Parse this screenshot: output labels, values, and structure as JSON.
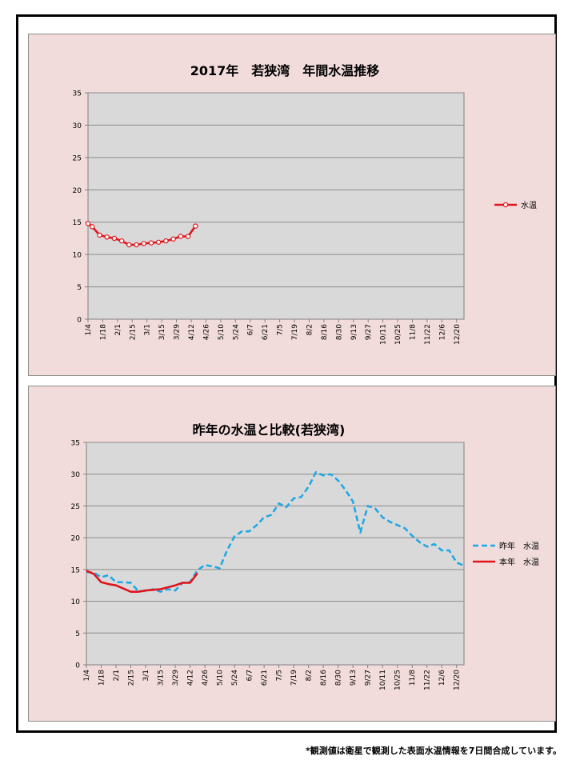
{
  "footnote": "*観測値は衛星で観測した表面水温情報を7日間合成しています。",
  "chart_data": [
    {
      "type": "line",
      "title": "2017年　若狭湾　年間水温推移",
      "categories": [
        "1/4",
        "1/18",
        "2/1",
        "2/15",
        "3/1",
        "3/15",
        "3/29",
        "4/12",
        "4/26",
        "5/10",
        "5/24",
        "6/7",
        "6/21",
        "7/5",
        "7/19",
        "8/2",
        "8/16",
        "8/30",
        "9/13",
        "9/27",
        "10/11",
        "10/25",
        "11/8",
        "11/22",
        "12/6",
        "12/20"
      ],
      "x_span": [
        "1/4",
        "12/27"
      ],
      "ylim": [
        0,
        35
      ],
      "yticks": [
        0,
        5,
        10,
        15,
        20,
        25,
        30,
        35
      ],
      "grid": true,
      "legend_position": "right",
      "colors": {
        "plot_bg": "#d9d9d9",
        "panel_bg": "#f2dcdb",
        "line": "#e0141b"
      },
      "series": [
        {
          "name": "水温",
          "color": "#e0141b",
          "style": "solid-markers",
          "points": [
            [
              "1/4",
              14.8
            ],
            [
              "1/8",
              14.3
            ],
            [
              "1/15",
              13.0
            ],
            [
              "1/22",
              12.7
            ],
            [
              "1/29",
              12.5
            ],
            [
              "2/5",
              12.1
            ],
            [
              "2/12",
              11.5
            ],
            [
              "2/19",
              11.5
            ],
            [
              "2/26",
              11.7
            ],
            [
              "3/5",
              11.8
            ],
            [
              "3/12",
              11.9
            ],
            [
              "3/19",
              12.1
            ],
            [
              "3/26",
              12.4
            ],
            [
              "4/2",
              12.8
            ],
            [
              "4/9",
              12.8
            ],
            [
              "4/16",
              14.4
            ]
          ]
        }
      ]
    },
    {
      "type": "line",
      "title": "昨年の水温と比較(若狭湾)",
      "categories": [
        "1/4",
        "1/18",
        "2/1",
        "2/15",
        "3/1",
        "3/15",
        "3/29",
        "4/12",
        "4/26",
        "5/10",
        "5/24",
        "6/7",
        "6/21",
        "7/5",
        "7/19",
        "8/2",
        "8/16",
        "8/30",
        "9/13",
        "9/27",
        "10/11",
        "10/25",
        "11/8",
        "11/22",
        "12/6",
        "12/20"
      ],
      "x_span": [
        "1/4",
        "12/27"
      ],
      "ylim": [
        0,
        35
      ],
      "yticks": [
        0,
        5,
        10,
        15,
        20,
        25,
        30,
        35
      ],
      "grid": true,
      "legend_position": "right",
      "colors": {
        "plot_bg": "#d9d9d9",
        "panel_bg": "#f2dcdb",
        "last_year": "#1aa7e6",
        "this_year": "#e0141b"
      },
      "series": [
        {
          "name": "昨年　水温",
          "color": "#1aa7e6",
          "style": "dashed",
          "points": [
            [
              "1/4",
              14.6
            ],
            [
              "1/11",
              14.5
            ],
            [
              "1/18",
              13.8
            ],
            [
              "1/25",
              14.1
            ],
            [
              "2/1",
              13.0
            ],
            [
              "2/8",
              13.0
            ],
            [
              "2/15",
              12.9
            ],
            [
              "2/22",
              11.6
            ],
            [
              "3/1",
              11.6
            ],
            [
              "3/8",
              11.9
            ],
            [
              "3/15",
              11.5
            ],
            [
              "3/22",
              11.9
            ],
            [
              "3/29",
              11.7
            ],
            [
              "4/5",
              12.9
            ],
            [
              "4/12",
              13.0
            ],
            [
              "4/19",
              14.9
            ],
            [
              "4/26",
              15.7
            ],
            [
              "5/3",
              15.5
            ],
            [
              "5/10",
              15.2
            ],
            [
              "5/17",
              18.0
            ],
            [
              "5/24",
              20.2
            ],
            [
              "5/31",
              21.0
            ],
            [
              "6/7",
              21.0
            ],
            [
              "6/14",
              22.0
            ],
            [
              "6/21",
              23.2
            ],
            [
              "6/28",
              23.6
            ],
            [
              "7/5",
              25.4
            ],
            [
              "7/12",
              24.8
            ],
            [
              "7/19",
              26.2
            ],
            [
              "7/26",
              26.4
            ],
            [
              "8/2",
              28.0
            ],
            [
              "8/9",
              30.3
            ],
            [
              "8/16",
              29.8
            ],
            [
              "8/23",
              30.0
            ],
            [
              "8/30",
              29.0
            ],
            [
              "9/6",
              27.5
            ],
            [
              "9/13",
              25.7
            ],
            [
              "9/20",
              20.8
            ],
            [
              "9/27",
              25.0
            ],
            [
              "10/4",
              24.6
            ],
            [
              "10/11",
              23.2
            ],
            [
              "10/18",
              22.5
            ],
            [
              "10/25",
              22.0
            ],
            [
              "11/1",
              21.5
            ],
            [
              "11/8",
              20.3
            ],
            [
              "11/15",
              19.3
            ],
            [
              "11/22",
              18.6
            ],
            [
              "11/29",
              19.0
            ],
            [
              "12/6",
              18.0
            ],
            [
              "12/13",
              18.0
            ],
            [
              "12/20",
              16.1
            ],
            [
              "12/27",
              15.6
            ]
          ]
        },
        {
          "name": "本年　水温",
          "color": "#e0141b",
          "style": "solid",
          "points": [
            [
              "1/4",
              14.8
            ],
            [
              "1/11",
              14.3
            ],
            [
              "1/18",
              13.0
            ],
            [
              "1/25",
              12.7
            ],
            [
              "2/1",
              12.5
            ],
            [
              "2/8",
              12.0
            ],
            [
              "2/15",
              11.5
            ],
            [
              "2/22",
              11.5
            ],
            [
              "3/1",
              11.7
            ],
            [
              "3/8",
              11.8
            ],
            [
              "3/15",
              11.9
            ],
            [
              "3/22",
              12.2
            ],
            [
              "3/29",
              12.5
            ],
            [
              "4/5",
              12.9
            ],
            [
              "4/12",
              12.9
            ],
            [
              "4/19",
              14.4
            ]
          ]
        }
      ]
    }
  ]
}
